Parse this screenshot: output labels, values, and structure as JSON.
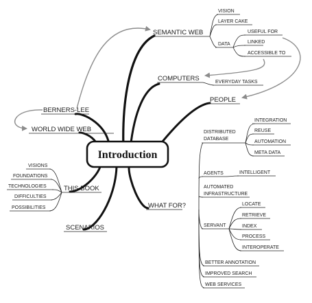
{
  "center": "Introduction",
  "semantic_web": {
    "label": "SEMANTIC WEB",
    "vision": "VISION",
    "layer_cake": "LAYER CAKE",
    "data": "DATA",
    "useful_for": "USEFUL FOR",
    "linked": "LINKED",
    "accessible_to": "ACCESSIBLE TO"
  },
  "computers": {
    "label": "COMPUTERS",
    "everyday_tasks": "EVERYDAY TASKS"
  },
  "people": {
    "label": "PEOPLE"
  },
  "berners_lee": {
    "label": "BERNERS-LEE"
  },
  "www": {
    "label": "WORLD WIDE WEB"
  },
  "this_book": {
    "label": "THIS BOOK",
    "items": [
      "VISIONS",
      "FOUNDATIONS",
      "TECHNOLOGIES",
      "DIFFICULTIES",
      "POSSIBILITIES"
    ]
  },
  "scenarios": {
    "label": "SCENARIOS"
  },
  "what_for": {
    "label": "WHAT FOR?",
    "distributed_database": {
      "line1": "DISTRIBUTED",
      "line2": "DATABASE",
      "items": [
        "INTEGRATION",
        "REUSE",
        "AUTOMATION",
        "META DATA"
      ]
    },
    "agents": {
      "label": "AGENTS",
      "intelligent": "INTELLIGENT"
    },
    "automated_infrastructure": {
      "line1": "AUTOMATED",
      "line2": "INFRASTRUCTURE"
    },
    "servant": {
      "label": "SERVANT",
      "items": [
        "LOCATE",
        "RETRIEVE",
        "INDEX",
        "PROCESS",
        "INTEROPERATE"
      ]
    },
    "others": [
      "BETTER ANNOTATION",
      "IMPROVED SEARCH",
      "WEB SERVICES"
    ]
  }
}
